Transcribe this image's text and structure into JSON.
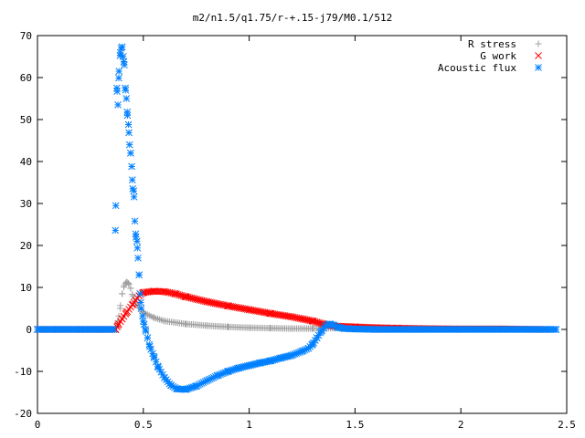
{
  "chart_data": {
    "type": "scatter",
    "title": "m2/n1.5/q1.75/r-+.15-j79/M0.1/512",
    "xlabel": "",
    "ylabel": "",
    "xlim": [
      0,
      2.5
    ],
    "ylim": [
      -20,
      70
    ],
    "xticks": [
      "0",
      "0.5",
      "1",
      "1.5",
      "2",
      "2.5"
    ],
    "yticks": [
      "-20",
      "-10",
      "0",
      "10",
      "20",
      "30",
      "40",
      "50",
      "60",
      "70"
    ],
    "legend_position": "top-right",
    "grid": false,
    "series": [
      {
        "name": "R stress",
        "color": "#a0a0a0",
        "marker": "plus",
        "points": [
          [
            0.0,
            0
          ],
          [
            0.1,
            0
          ],
          [
            0.2,
            0
          ],
          [
            0.3,
            0
          ],
          [
            0.36,
            0
          ],
          [
            0.37,
            0.5
          ],
          [
            0.38,
            2.0
          ],
          [
            0.39,
            5.0
          ],
          [
            0.4,
            8.5
          ],
          [
            0.41,
            10.5
          ],
          [
            0.42,
            11.3
          ],
          [
            0.43,
            11.0
          ],
          [
            0.44,
            9.8
          ],
          [
            0.45,
            8.0
          ],
          [
            0.47,
            5.8
          ],
          [
            0.5,
            4.0
          ],
          [
            0.55,
            2.8
          ],
          [
            0.6,
            2.0
          ],
          [
            0.7,
            1.3
          ],
          [
            0.8,
            0.9
          ],
          [
            0.9,
            0.6
          ],
          [
            1.0,
            0.4
          ],
          [
            1.1,
            0.3
          ],
          [
            1.2,
            0.2
          ],
          [
            1.3,
            0.2
          ],
          [
            1.4,
            0.3
          ],
          [
            1.5,
            0.3
          ],
          [
            1.6,
            0.2
          ],
          [
            1.8,
            0.1
          ],
          [
            2.0,
            0.1
          ],
          [
            2.2,
            0.0
          ],
          [
            2.4,
            0.0
          ]
        ]
      },
      {
        "name": "G work",
        "color": "#ff0000",
        "marker": "cross",
        "points": [
          [
            0.0,
            0
          ],
          [
            0.1,
            0
          ],
          [
            0.2,
            0
          ],
          [
            0.3,
            0
          ],
          [
            0.37,
            0
          ],
          [
            0.38,
            1.0
          ],
          [
            0.4,
            2.5
          ],
          [
            0.42,
            4.0
          ],
          [
            0.45,
            6.0
          ],
          [
            0.48,
            8.0
          ],
          [
            0.5,
            8.8
          ],
          [
            0.55,
            9.1
          ],
          [
            0.6,
            9.0
          ],
          [
            0.65,
            8.5
          ],
          [
            0.7,
            7.8
          ],
          [
            0.8,
            6.6
          ],
          [
            0.9,
            5.6
          ],
          [
            1.0,
            4.7
          ],
          [
            1.1,
            3.8
          ],
          [
            1.2,
            3.0
          ],
          [
            1.3,
            2.0
          ],
          [
            1.35,
            1.3
          ],
          [
            1.4,
            0.8
          ],
          [
            1.5,
            0.6
          ],
          [
            1.6,
            0.4
          ],
          [
            1.7,
            0.3
          ],
          [
            1.8,
            0.2
          ],
          [
            2.0,
            0.1
          ],
          [
            2.2,
            0.1
          ],
          [
            2.4,
            0.0
          ]
        ]
      },
      {
        "name": "Acoustic flux",
        "color": "#0080ff",
        "marker": "star",
        "points": [
          [
            0.0,
            0
          ],
          [
            0.1,
            0
          ],
          [
            0.2,
            0
          ],
          [
            0.3,
            0
          ],
          [
            0.36,
            0
          ],
          [
            0.37,
            29.5
          ],
          [
            0.375,
            57.5
          ],
          [
            0.38,
            53.5
          ],
          [
            0.385,
            61.5
          ],
          [
            0.39,
            65.2
          ],
          [
            0.395,
            67.0
          ],
          [
            0.4,
            67.3
          ],
          [
            0.405,
            65.0
          ],
          [
            0.41,
            63.0
          ],
          [
            0.415,
            57.5
          ],
          [
            0.42,
            55.0
          ],
          [
            0.425,
            51.0
          ],
          [
            0.43,
            48.8
          ],
          [
            0.435,
            44.0
          ],
          [
            0.44,
            42.0
          ],
          [
            0.445,
            38.8
          ],
          [
            0.45,
            33.5
          ],
          [
            0.455,
            33.0
          ],
          [
            0.46,
            25.8
          ],
          [
            0.465,
            22.0
          ],
          [
            0.47,
            21.0
          ],
          [
            0.475,
            17.0
          ],
          [
            0.48,
            13.0
          ],
          [
            0.485,
            8.5
          ],
          [
            0.49,
            5.0
          ],
          [
            0.5,
            2.0
          ],
          [
            0.51,
            0
          ],
          [
            0.52,
            -2.0
          ],
          [
            0.53,
            -4.0
          ],
          [
            0.55,
            -6.5
          ],
          [
            0.57,
            -9.0
          ],
          [
            0.6,
            -11.5
          ],
          [
            0.63,
            -13.3
          ],
          [
            0.66,
            -14.2
          ],
          [
            0.7,
            -14.3
          ],
          [
            0.75,
            -13.5
          ],
          [
            0.8,
            -12.2
          ],
          [
            0.85,
            -11.0
          ],
          [
            0.9,
            -10.0
          ],
          [
            0.95,
            -9.2
          ],
          [
            1.0,
            -8.6
          ],
          [
            1.05,
            -8.0
          ],
          [
            1.1,
            -7.5
          ],
          [
            1.15,
            -6.8
          ],
          [
            1.2,
            -6.2
          ],
          [
            1.25,
            -5.2
          ],
          [
            1.28,
            -4.5
          ],
          [
            1.3,
            -3.5
          ],
          [
            1.32,
            -2.0
          ],
          [
            1.34,
            -0.5
          ],
          [
            1.36,
            0.8
          ],
          [
            1.38,
            1.3
          ],
          [
            1.4,
            1.0
          ],
          [
            1.42,
            0.5
          ],
          [
            1.45,
            0.2
          ],
          [
            1.5,
            0.1
          ],
          [
            1.6,
            0
          ],
          [
            1.8,
            0
          ],
          [
            2.0,
            0
          ],
          [
            2.2,
            0
          ],
          [
            2.45,
            0
          ]
        ]
      }
    ]
  }
}
